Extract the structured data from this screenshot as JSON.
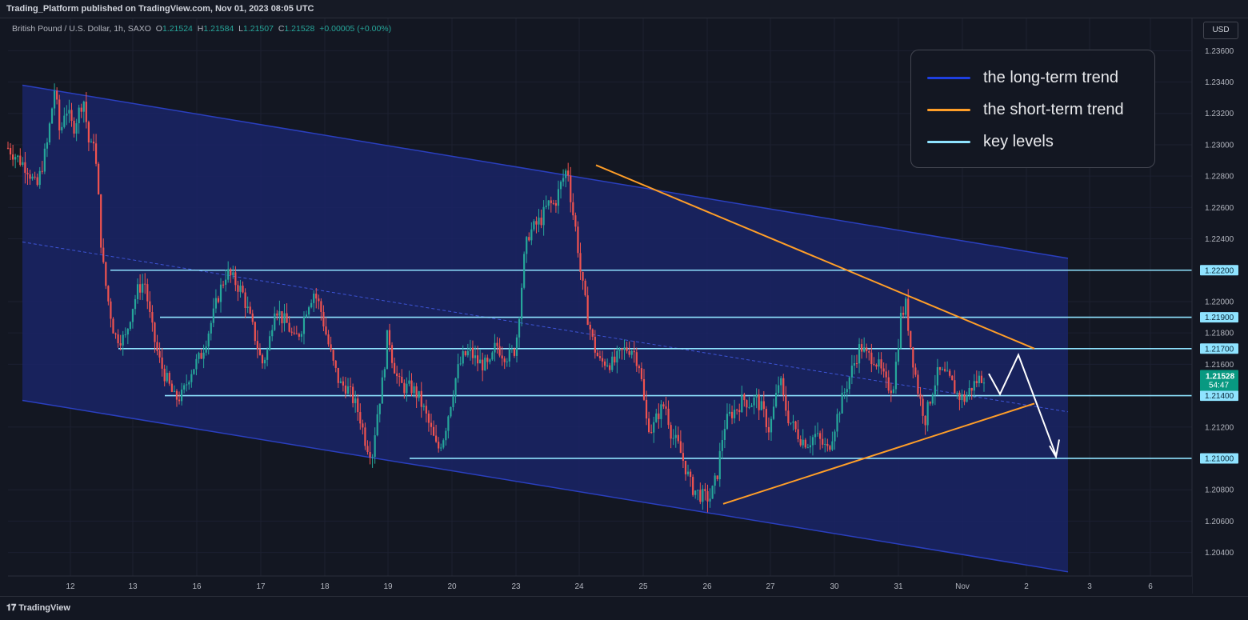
{
  "header": {
    "publish_line": "Trading_Platform published on TradingView.com, Nov 01, 2023 08:05 UTC"
  },
  "ohlc": {
    "symbol": "British Pound / U.S. Dollar, 1h, SAXO",
    "open_label": "O",
    "open": "1.21524",
    "high_label": "H",
    "high": "1.21584",
    "low_label": "L",
    "low": "1.21507",
    "close_label": "C",
    "close": "1.21528",
    "change": "+0.00005 (+0.00%)"
  },
  "currency_button": "USD",
  "legend": [
    {
      "label": "the long-term trend",
      "color": "#1e3fe0"
    },
    {
      "label": "the short-term trend",
      "color": "#ff9e28"
    },
    {
      "label": "key levels",
      "color": "#8fe3ff"
    }
  ],
  "footer": {
    "brand": "TradingView"
  },
  "chart_data": {
    "type": "candlestick",
    "ylim": [
      1.2025,
      1.2377
    ],
    "y_ticks": [
      "1.23600",
      "1.23400",
      "1.23200",
      "1.23000",
      "1.22800",
      "1.22600",
      "1.22400",
      "1.22000",
      "1.21800",
      "1.21600",
      "1.21200",
      "1.20800",
      "1.20600",
      "1.20400"
    ],
    "x_ticks": [
      "12",
      "13",
      "16",
      "17",
      "18",
      "19",
      "20",
      "23",
      "24",
      "25",
      "26",
      "27",
      "30",
      "31",
      "Nov",
      "2",
      "3",
      "6"
    ],
    "key_levels": [
      "1.22200",
      "1.21900",
      "1.21700",
      "1.21400",
      "1.21000"
    ],
    "current_price": {
      "value": "1.21528",
      "countdown": "54:47"
    },
    "colors": {
      "up": "#26a69a",
      "down": "#ef5350",
      "channel_fill": "#1a2466",
      "key_level": "#8fe3ff",
      "short_trend": "#ff9e28",
      "long_trend": "#2a3fbf"
    },
    "channel": {
      "upper": [
        [
          "11",
          "1.2338"
        ],
        [
          "2",
          "1.2232"
        ]
      ],
      "lower": [
        [
          "11",
          "1.2137"
        ],
        [
          "2",
          "1.2032"
        ]
      ],
      "mid": [
        [
          "11",
          "1.2238"
        ],
        [
          "2",
          "1.2134"
        ]
      ]
    },
    "short_trend_lines": [
      [
        [
          "24",
          "1.2287"
        ],
        [
          "2",
          "1.2170"
        ]
      ],
      [
        [
          "26",
          "1.2071"
        ],
        [
          "2",
          "1.2135"
        ]
      ]
    ],
    "projection_arrow": [
      [
        "Nov",
        "1.2150"
      ],
      [
        "1",
        "1.2141"
      ],
      [
        "2",
        "1.2166"
      ],
      [
        "2",
        "1.2101"
      ]
    ],
    "price_path": [
      [
        0,
        1.2298
      ],
      [
        1.5,
        1.2285
      ],
      [
        2.2,
        1.2272
      ],
      [
        3,
        1.23
      ],
      [
        3.6,
        1.2337
      ],
      [
        4,
        1.2305
      ],
      [
        4.4,
        1.2325
      ],
      [
        5,
        1.231
      ],
      [
        5.4,
        1.232
      ],
      [
        5.8,
        1.233
      ],
      [
        6.3,
        1.2295
      ],
      [
        6.6,
        1.2305
      ],
      [
        7,
        1.226
      ],
      [
        7.2,
        1.223
      ],
      [
        7.6,
        1.2205
      ],
      [
        8.2,
        1.2178
      ],
      [
        9,
        1.2176
      ],
      [
        9.5,
        1.2195
      ],
      [
        10,
        1.2208
      ],
      [
        10.5,
        1.2213
      ],
      [
        11,
        1.2185
      ],
      [
        11.6,
        1.2163
      ],
      [
        12.2,
        1.215
      ],
      [
        12.8,
        1.2138
      ],
      [
        13.4,
        1.214
      ],
      [
        14,
        1.2155
      ],
      [
        14.8,
        1.2165
      ],
      [
        15.3,
        1.2178
      ],
      [
        15.8,
        1.2192
      ],
      [
        16.2,
        1.2205
      ],
      [
        16.8,
        1.2219
      ],
      [
        17.5,
        1.2212
      ],
      [
        18,
        1.2206
      ],
      [
        18.5,
        1.2192
      ],
      [
        19,
        1.2177
      ],
      [
        19.5,
        1.216
      ],
      [
        20,
        1.217
      ],
      [
        20.5,
        1.2198
      ],
      [
        21,
        1.219
      ],
      [
        21.5,
        1.2185
      ],
      [
        22,
        1.2175
      ],
      [
        22.5,
        1.2182
      ],
      [
        23,
        1.2198
      ],
      [
        23.5,
        1.2206
      ],
      [
        24,
        1.2196
      ],
      [
        24.5,
        1.2177
      ],
      [
        25,
        1.216
      ],
      [
        25.5,
        1.2147
      ],
      [
        26,
        1.2146
      ],
      [
        26.5,
        1.2138
      ],
      [
        27,
        1.2128
      ],
      [
        27.5,
        1.211
      ],
      [
        28,
        1.2103
      ],
      [
        28.3,
        1.2125
      ],
      [
        28.8,
        1.215
      ],
      [
        29.2,
        1.2182
      ],
      [
        29.5,
        1.2165
      ],
      [
        30,
        1.2148
      ],
      [
        30.5,
        1.2145
      ],
      [
        31,
        1.2145
      ],
      [
        31.5,
        1.214
      ],
      [
        32,
        1.213
      ],
      [
        32.5,
        1.2118
      ],
      [
        33,
        1.2105
      ],
      [
        33.5,
        1.2115
      ],
      [
        34,
        1.2135
      ],
      [
        34.5,
        1.2155
      ],
      [
        35,
        1.2165
      ],
      [
        35.5,
        1.2168
      ],
      [
        36,
        1.2162
      ],
      [
        36.5,
        1.216
      ],
      [
        37,
        1.2158
      ],
      [
        37.5,
        1.2173
      ],
      [
        38,
        1.2167
      ],
      [
        38.5,
        1.2165
      ],
      [
        39,
        1.217
      ],
      [
        39.3,
        1.2195
      ],
      [
        39.7,
        1.223
      ],
      [
        40,
        1.2243
      ],
      [
        40.5,
        1.2248
      ],
      [
        41,
        1.2253
      ],
      [
        41.5,
        1.2262
      ],
      [
        42,
        1.2262
      ],
      [
        42.5,
        1.2275
      ],
      [
        43,
        1.2286
      ],
      [
        43.3,
        1.2262
      ],
      [
        43.7,
        1.2242
      ],
      [
        44,
        1.2218
      ],
      [
        44.5,
        1.2192
      ],
      [
        45,
        1.2172
      ],
      [
        45.5,
        1.2161
      ],
      [
        46,
        1.2162
      ],
      [
        46.5,
        1.216
      ],
      [
        47,
        1.2166
      ],
      [
        47.5,
        1.217
      ],
      [
        48,
        1.217
      ],
      [
        48.5,
        1.216
      ],
      [
        48.8,
        1.2142
      ],
      [
        49,
        1.2125
      ],
      [
        49.5,
        1.2118
      ],
      [
        50,
        1.2129
      ],
      [
        50.5,
        1.2135
      ],
      [
        51,
        1.2115
      ],
      [
        51.5,
        1.2108
      ],
      [
        52,
        1.2096
      ],
      [
        52.5,
        1.2082
      ],
      [
        53,
        1.2078
      ],
      [
        53.5,
        1.2075
      ],
      [
        54,
        1.2075
      ],
      [
        54.5,
        1.209
      ],
      [
        55,
        1.212
      ],
      [
        55.5,
        1.2128
      ],
      [
        56,
        1.2132
      ],
      [
        56.5,
        1.2138
      ],
      [
        57,
        1.2135
      ],
      [
        57.5,
        1.2138
      ],
      [
        58,
        1.213
      ],
      [
        58.5,
        1.2118
      ],
      [
        59,
        1.2138
      ],
      [
        59.3,
        1.2152
      ],
      [
        59.6,
        1.2137
      ],
      [
        60,
        1.2125
      ],
      [
        60.5,
        1.2118
      ],
      [
        61,
        1.2112
      ],
      [
        61.5,
        1.211
      ],
      [
        62,
        1.2115
      ],
      [
        62.5,
        1.211
      ],
      [
        63,
        1.2105
      ],
      [
        63.5,
        1.212
      ],
      [
        64,
        1.2135
      ],
      [
        64.5,
        1.2148
      ],
      [
        65,
        1.216
      ],
      [
        65.5,
        1.2172
      ],
      [
        66,
        1.2165
      ],
      [
        66.5,
        1.2165
      ],
      [
        67,
        1.2157
      ],
      [
        67.5,
        1.2147
      ],
      [
        68,
        1.2145
      ],
      [
        68.3,
        1.2165
      ],
      [
        68.6,
        1.219
      ],
      [
        69,
        1.2198
      ],
      [
        69.3,
        1.2175
      ],
      [
        69.7,
        1.2155
      ],
      [
        70,
        1.214
      ],
      [
        70.5,
        1.2125
      ],
      [
        71,
        1.2143
      ],
      [
        71.5,
        1.2155
      ],
      [
        72,
        1.2153
      ],
      [
        72.5,
        1.2148
      ],
      [
        73,
        1.214
      ],
      [
        73.5,
        1.2138
      ],
      [
        74,
        1.2145
      ],
      [
        74.5,
        1.215
      ],
      [
        75,
        1.2153
      ]
    ]
  }
}
